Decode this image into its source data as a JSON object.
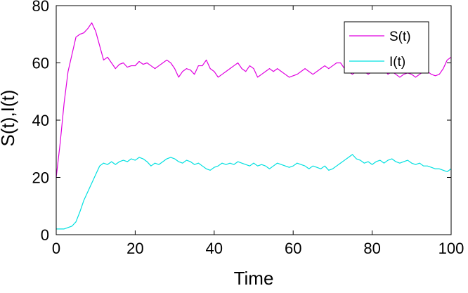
{
  "chart_data": {
    "type": "line",
    "title": "",
    "xlabel": "Time",
    "ylabel": "S(t),I(t)",
    "xlim": [
      0,
      100
    ],
    "ylim": [
      0,
      80
    ],
    "xticks": [
      0,
      20,
      40,
      60,
      80,
      100
    ],
    "yticks": [
      0,
      20,
      40,
      60,
      80
    ],
    "grid": false,
    "legend_position": "top-right",
    "series": [
      {
        "name": "S(t)",
        "color": "#e000e0",
        "x": [
          0,
          1,
          2,
          3,
          4,
          5,
          6,
          7,
          8,
          9,
          10,
          11,
          12,
          13,
          14,
          15,
          16,
          17,
          18,
          19,
          20,
          21,
          22,
          23,
          24,
          25,
          26,
          27,
          28,
          29,
          30,
          31,
          32,
          33,
          34,
          35,
          36,
          37,
          38,
          39,
          40,
          41,
          42,
          43,
          44,
          45,
          46,
          47,
          48,
          49,
          50,
          51,
          52,
          53,
          54,
          55,
          56,
          57,
          58,
          59,
          60,
          61,
          62,
          63,
          64,
          65,
          66,
          67,
          68,
          69,
          70,
          71,
          72,
          73,
          74,
          75,
          76,
          77,
          78,
          79,
          80,
          81,
          82,
          83,
          84,
          85,
          86,
          87,
          88,
          89,
          90,
          91,
          92,
          93,
          94,
          95,
          96,
          97,
          98,
          99,
          100
        ],
        "values": [
          20,
          32,
          46,
          57,
          63,
          69,
          70,
          70.5,
          72,
          74,
          71,
          66,
          61,
          62,
          60,
          58,
          59.5,
          60,
          58.5,
          59,
          59,
          60.5,
          59.5,
          60,
          59,
          58,
          59,
          60,
          61,
          60,
          58,
          55,
          57,
          58,
          57.5,
          56,
          59,
          59,
          61,
          58,
          57,
          55,
          56,
          57,
          58,
          59,
          60,
          58,
          57,
          59,
          58,
          55,
          56,
          57,
          58,
          57,
          58,
          57,
          56,
          55,
          55.5,
          56,
          57,
          58,
          57,
          56,
          57,
          58,
          59,
          58,
          59,
          60,
          60,
          58,
          57,
          56,
          57,
          58,
          57,
          56,
          57,
          58,
          59,
          58,
          56,
          57,
          56,
          55,
          56,
          56.5,
          56,
          55,
          56,
          57,
          57,
          56,
          55.5,
          56,
          58,
          61,
          62
        ]
      },
      {
        "name": "I(t)",
        "color": "#00e0e0",
        "x": [
          0,
          1,
          2,
          3,
          4,
          5,
          6,
          7,
          8,
          9,
          10,
          11,
          12,
          13,
          14,
          15,
          16,
          17,
          18,
          19,
          20,
          21,
          22,
          23,
          24,
          25,
          26,
          27,
          28,
          29,
          30,
          31,
          32,
          33,
          34,
          35,
          36,
          37,
          38,
          39,
          40,
          41,
          42,
          43,
          44,
          45,
          46,
          47,
          48,
          49,
          50,
          51,
          52,
          53,
          54,
          55,
          56,
          57,
          58,
          59,
          60,
          61,
          62,
          63,
          64,
          65,
          66,
          67,
          68,
          69,
          70,
          71,
          72,
          73,
          74,
          75,
          76,
          77,
          78,
          79,
          80,
          81,
          82,
          83,
          84,
          85,
          86,
          87,
          88,
          89,
          90,
          91,
          92,
          93,
          94,
          95,
          96,
          97,
          98,
          99,
          100
        ],
        "values": [
          2,
          2,
          2,
          2.5,
          3,
          4.5,
          8,
          12,
          15,
          18,
          21,
          24,
          25,
          24.5,
          25.5,
          24.5,
          25.5,
          26,
          25.5,
          26.5,
          26,
          27,
          26.5,
          25.5,
          24,
          25,
          24.5,
          25.5,
          26.5,
          27,
          26.5,
          25.5,
          25,
          26,
          25.5,
          24.5,
          25,
          24,
          23,
          22.5,
          23.5,
          24,
          25,
          24.5,
          25,
          24.5,
          25.5,
          25,
          24.5,
          24,
          25,
          24,
          24.5,
          24,
          23,
          24,
          25,
          24.5,
          24,
          23.5,
          24,
          25,
          24.5,
          24,
          23,
          24,
          23.5,
          23,
          24,
          22.5,
          23,
          24,
          25,
          26,
          27,
          28,
          26.5,
          26,
          25,
          25.5,
          24.5,
          25.5,
          26,
          25,
          26,
          26.5,
          25.5,
          25,
          25.5,
          26,
          25,
          24.5,
          25,
          24,
          24,
          23.5,
          23,
          23,
          22.5,
          22,
          23
        ]
      }
    ]
  }
}
